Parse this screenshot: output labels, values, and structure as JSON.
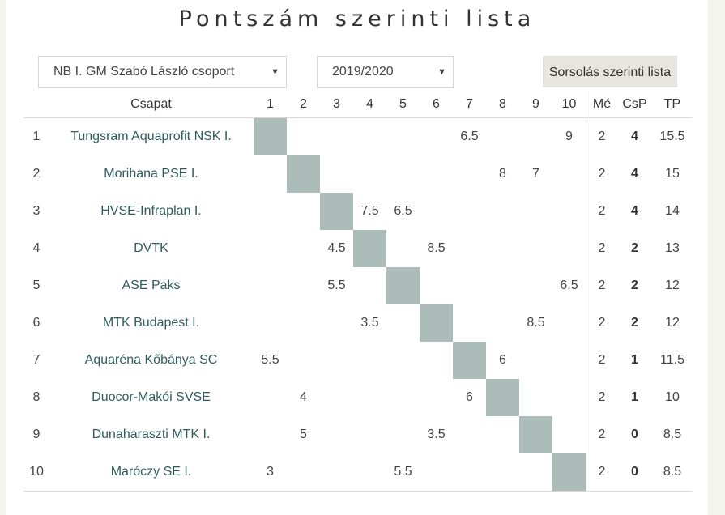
{
  "page": {
    "title": "Pontszám szerinti lista"
  },
  "filters": {
    "group": "NB I. GM Szabó László csoport",
    "season": "2019/2020",
    "schedule_button": "Sorsolás szerinti lista"
  },
  "table": {
    "headers": {
      "team": "Csapat",
      "rounds": [
        "1",
        "2",
        "3",
        "4",
        "5",
        "6",
        "7",
        "8",
        "9",
        "10"
      ],
      "me": "Mé",
      "csp": "CsP",
      "tp": "TP"
    },
    "rows": [
      {
        "rank": "1",
        "team": "Tungsram Aquaprofit NSK I.",
        "results": [
          "",
          "",
          "",
          "",
          "",
          "",
          "6.5",
          "",
          "",
          "9"
        ],
        "me": "2",
        "csp": "4",
        "tp": "15.5"
      },
      {
        "rank": "2",
        "team": "Morihana PSE I.",
        "results": [
          "",
          "",
          "",
          "",
          "",
          "",
          "",
          "8",
          "7",
          ""
        ],
        "me": "2",
        "csp": "4",
        "tp": "15"
      },
      {
        "rank": "3",
        "team": "HVSE-Infraplan I.",
        "results": [
          "",
          "",
          "",
          "7.5",
          "6.5",
          "",
          "",
          "",
          "",
          ""
        ],
        "me": "2",
        "csp": "4",
        "tp": "14"
      },
      {
        "rank": "4",
        "team": "DVTK",
        "results": [
          "",
          "",
          "4.5",
          "",
          "",
          "8.5",
          "",
          "",
          "",
          ""
        ],
        "me": "2",
        "csp": "2",
        "tp": "13"
      },
      {
        "rank": "5",
        "team": "ASE Paks",
        "results": [
          "",
          "",
          "5.5",
          "",
          "",
          "",
          "",
          "",
          "",
          "6.5"
        ],
        "me": "2",
        "csp": "2",
        "tp": "12"
      },
      {
        "rank": "6",
        "team": "MTK Budapest I.",
        "results": [
          "",
          "",
          "",
          "3.5",
          "",
          "",
          "",
          "",
          "8.5",
          ""
        ],
        "me": "2",
        "csp": "2",
        "tp": "12"
      },
      {
        "rank": "7",
        "team": "Aquaréna Kőbánya SC",
        "results": [
          "5.5",
          "",
          "",
          "",
          "",
          "",
          "",
          "6",
          "",
          ""
        ],
        "me": "2",
        "csp": "1",
        "tp": "11.5"
      },
      {
        "rank": "8",
        "team": "Duocor-Makói SVSE",
        "results": [
          "",
          "4",
          "",
          "",
          "",
          "",
          "6",
          "",
          "",
          ""
        ],
        "me": "2",
        "csp": "1",
        "tp": "10"
      },
      {
        "rank": "9",
        "team": "Dunaharaszti MTK I.",
        "results": [
          "",
          "5",
          "",
          "",
          "",
          "3.5",
          "",
          "",
          "",
          ""
        ],
        "me": "2",
        "csp": "0",
        "tp": "8.5"
      },
      {
        "rank": "10",
        "team": "Maróczy SE I.",
        "results": [
          "3",
          "",
          "",
          "",
          "5.5",
          "",
          "",
          "",
          "",
          ""
        ],
        "me": "2",
        "csp": "0",
        "tp": "8.5"
      }
    ]
  },
  "colors": {
    "diagonal_cell": "#acbdb9",
    "team_link": "#2f5d5d",
    "button_bg": "#e6e6df"
  }
}
